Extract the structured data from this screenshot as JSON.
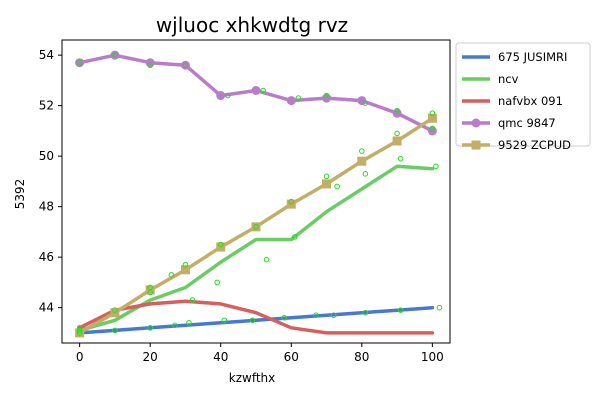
{
  "chart_data": {
    "type": "line",
    "title": "wjluoc xhkwdtg rvz",
    "xlabel": "kzwfthx",
    "ylabel": "5392",
    "xlim": [
      -5,
      105
    ],
    "ylim": [
      42.6,
      54.6
    ],
    "xticks": [
      0,
      20,
      40,
      60,
      80,
      100
    ],
    "yticks": [
      44,
      46,
      48,
      50,
      52,
      54
    ],
    "grid": false,
    "legend_position": "outside-right",
    "series": [
      {
        "name": "675 JUSIMRI",
        "color": "#4878d0",
        "marker": "none",
        "x": [
          0,
          10,
          20,
          30,
          40,
          50,
          60,
          70,
          80,
          90,
          100
        ],
        "y": [
          43.0,
          43.1,
          43.2,
          43.3,
          43.4,
          43.5,
          43.6,
          43.7,
          43.8,
          43.9,
          44.0
        ]
      },
      {
        "name": "ncv",
        "color": "#6acc64",
        "marker": "none",
        "x": [
          0,
          10,
          20,
          30,
          40,
          50,
          60,
          70,
          80,
          90,
          100
        ],
        "y": [
          43.1,
          43.5,
          44.3,
          44.8,
          45.8,
          46.7,
          46.7,
          47.8,
          48.7,
          49.6,
          49.5
        ]
      },
      {
        "name": "nafvbx 091",
        "color": "#d65f5f",
        "marker": "none",
        "x": [
          0,
          10,
          20,
          30,
          40,
          50,
          60,
          70,
          80,
          90,
          100
        ],
        "y": [
          43.2,
          43.9,
          44.15,
          44.25,
          44.15,
          43.8,
          43.2,
          43.0,
          43.0,
          43.0,
          43.0
        ]
      },
      {
        "name": "qmc 9847",
        "color": "#b97cc9",
        "marker": "circle",
        "x": [
          0,
          10,
          20,
          30,
          40,
          50,
          60,
          70,
          80,
          90,
          100
        ],
        "y": [
          53.7,
          54.0,
          53.7,
          53.6,
          52.4,
          52.6,
          52.2,
          52.3,
          52.2,
          51.7,
          51.0
        ]
      },
      {
        "name": "9529 ZCPUD",
        "color": "#c4ad66",
        "marker": "square",
        "x": [
          0,
          10,
          20,
          30,
          40,
          50,
          60,
          70,
          80,
          90,
          100
        ],
        "y": [
          43.0,
          43.8,
          44.7,
          45.5,
          46.4,
          47.2,
          48.1,
          48.9,
          49.8,
          50.6,
          51.5
        ]
      }
    ],
    "scatter_points": {
      "color": "#22dd22",
      "x": [
        0,
        10,
        20,
        26,
        30,
        40,
        50,
        60,
        70,
        80,
        90,
        100,
        0,
        10,
        20,
        30,
        42,
        52,
        62,
        70,
        81,
        90,
        100,
        0,
        10,
        20,
        27,
        31,
        41,
        49,
        58,
        67,
        72,
        81,
        91,
        102,
        0,
        20,
        32,
        39,
        53,
        61,
        73,
        81,
        91,
        101
      ],
      "y": [
        43.2,
        43.9,
        44.8,
        45.3,
        45.7,
        46.5,
        47.2,
        48.2,
        49.2,
        50.2,
        50.9,
        51.7,
        53.7,
        54.0,
        53.6,
        53.6,
        52.4,
        52.6,
        52.3,
        52.4,
        52.1,
        51.8,
        51.1,
        43.0,
        43.1,
        43.2,
        43.3,
        43.4,
        43.5,
        43.5,
        43.6,
        43.7,
        43.7,
        43.8,
        43.9,
        44.0,
        43.1,
        44.6,
        44.3,
        45.0,
        45.9,
        46.8,
        48.8,
        49.3,
        49.9,
        49.6
      ]
    }
  }
}
